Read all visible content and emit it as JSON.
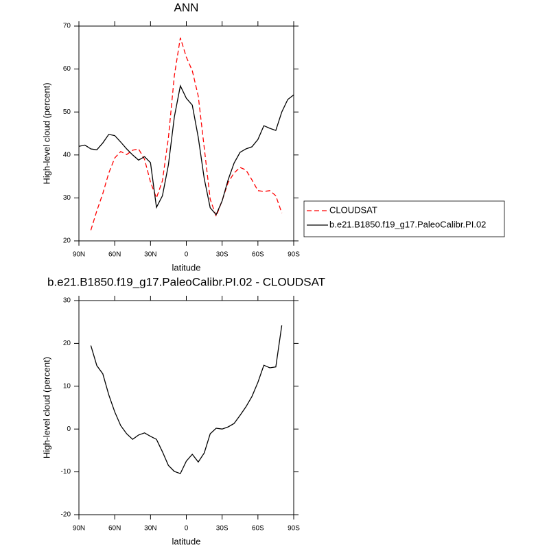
{
  "chart_data": [
    {
      "type": "line",
      "title": "ANN",
      "xlabel": "latitude",
      "ylabel": "High-level cloud (percent)",
      "x": [
        90,
        85,
        80,
        75,
        70,
        65,
        60,
        55,
        50,
        45,
        40,
        35,
        30,
        25,
        20,
        15,
        10,
        5,
        0,
        -5,
        -10,
        -15,
        -20,
        -25,
        -30,
        -35,
        -40,
        -45,
        -50,
        -55,
        -60,
        -65,
        -70,
        -75,
        -80,
        -85,
        -90
      ],
      "series": [
        {
          "name": "CLOUDSAT",
          "color": "#ff0000",
          "linestyle": "dashed",
          "values": [
            null,
            null,
            22.5,
            27,
            31,
            35.8,
            39.3,
            40.8,
            40.1,
            41.1,
            41.4,
            39,
            33.7,
            30,
            34,
            44,
            58.5,
            67.3,
            62.8,
            59.6,
            53.7,
            41.7,
            29.7,
            25.7,
            29.4,
            33.6,
            35.8,
            37.1,
            36.5,
            34.2,
            31.7,
            31.5,
            31.7,
            30.5,
            26.5,
            null,
            null
          ]
        },
        {
          "name": "b.e21.B1850.f19_g17.PaleoCalibr.PI.02",
          "color": "#000000",
          "linestyle": "solid",
          "values": [
            42.0,
            42.3,
            41.4,
            41.2,
            42.8,
            44.8,
            44.5,
            43,
            41.4,
            40,
            38.8,
            39.6,
            38.2,
            27.8,
            30.5,
            37.7,
            48.9,
            56.1,
            53.2,
            51.6,
            44.1,
            34.5,
            27.7,
            26.1,
            29.3,
            34.2,
            38.1,
            40.6,
            41.4,
            41.9,
            43.6,
            46.8,
            46.2,
            45.7,
            50,
            52.9,
            54.0
          ]
        }
      ],
      "xlim": [
        90,
        -90
      ],
      "ylim": [
        20,
        70
      ],
      "xticks": [
        {
          "value": 90,
          "label": "90N"
        },
        {
          "value": 60,
          "label": "60N"
        },
        {
          "value": 30,
          "label": "30N"
        },
        0,
        {
          "value": -30,
          "label": "30S"
        },
        {
          "value": -60,
          "label": "60S"
        },
        {
          "value": -90,
          "label": "90S"
        }
      ],
      "yticks": [
        20,
        30,
        40,
        50,
        60,
        70
      ],
      "legend": "right"
    },
    {
      "type": "line",
      "title": "b.e21.B1850.f19_g17.PaleoCalibr.PI.02 - CLOUDSAT",
      "xlabel": "latitude",
      "ylabel": "High-level cloud (percent)",
      "x": [
        90,
        85,
        80,
        75,
        70,
        65,
        60,
        55,
        50,
        45,
        40,
        35,
        30,
        25,
        20,
        15,
        10,
        5,
        0,
        -5,
        -10,
        -15,
        -20,
        -25,
        -30,
        -35,
        -40,
        -45,
        -50,
        -55,
        -60,
        -65,
        -70,
        -75,
        -80,
        -85,
        -90
      ],
      "series": [
        {
          "color": "#000000",
          "linestyle": "solid",
          "values": [
            null,
            null,
            19.5,
            14.8,
            12.9,
            8.0,
            4.0,
            0.8,
            -1.1,
            -2.4,
            -1.4,
            -0.9,
            -1.7,
            -2.4,
            -5.3,
            -8.5,
            -9.9,
            -10.4,
            -7.5,
            -5.9,
            -7.7,
            -5.6,
            -1.1,
            0.2,
            0,
            0.5,
            1.3,
            3.2,
            5.2,
            7.6,
            10.9,
            14.9,
            14.3,
            14.5,
            24.2,
            null,
            null
          ]
        }
      ],
      "xlim": [
        90,
        -90
      ],
      "ylim": [
        -20,
        30
      ],
      "xticks": [
        {
          "value": 90,
          "label": "90N"
        },
        {
          "value": 60,
          "label": "60N"
        },
        {
          "value": 30,
          "label": "30N"
        },
        0,
        {
          "value": -30,
          "label": "30S"
        },
        {
          "value": -60,
          "label": "60S"
        },
        {
          "value": -90,
          "label": "90S"
        }
      ],
      "yticks": [
        -20,
        -10,
        0,
        10,
        20,
        30
      ]
    }
  ]
}
